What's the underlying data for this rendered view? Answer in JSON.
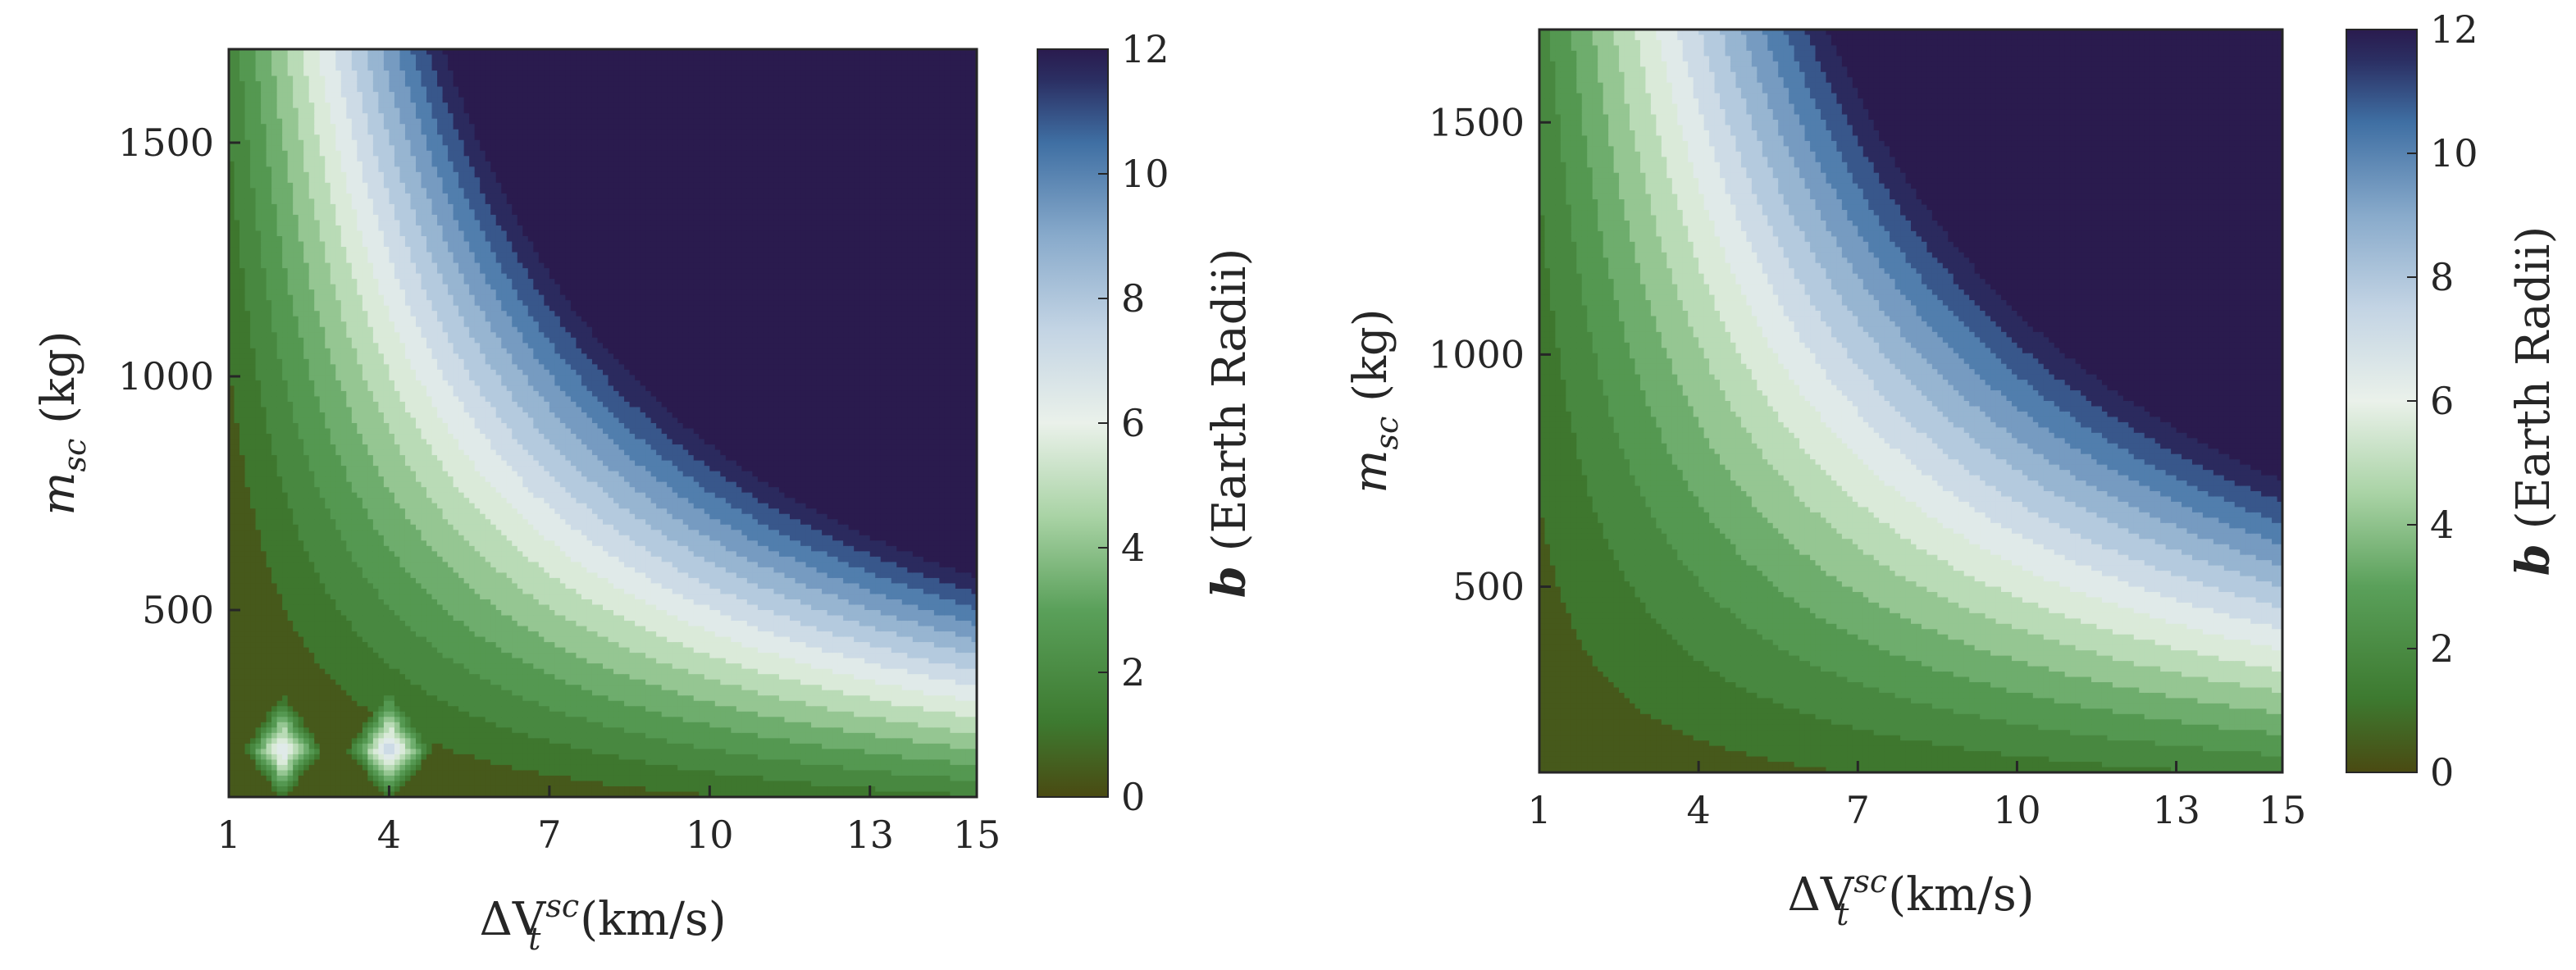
{
  "chart_data": [
    {
      "type": "contour",
      "xlabel": {
        "main": "ΔV",
        "sub": "t",
        "sup": "sc",
        "unit": "(km/s)"
      },
      "ylabel": {
        "main": "m",
        "sub": "sc",
        "unit": "(kg)"
      },
      "xlim": [
        1,
        15
      ],
      "ylim": [
        100,
        1700
      ],
      "xticks": [
        1,
        4,
        7,
        10,
        13,
        15
      ],
      "xtick_labels": [
        "1",
        "4",
        "7",
        "10",
        "13",
        "15"
      ],
      "yticks": [
        500,
        1000,
        1500
      ],
      "ytick_labels": [
        "500",
        "1000",
        "1500"
      ],
      "colorbar": {
        "label_var": "b",
        "label_rest": "(Earth Radii)",
        "range": [
          0,
          12
        ],
        "ticks": [
          0,
          2,
          4,
          6,
          8,
          10,
          12
        ],
        "tick_labels": [
          "0",
          "2",
          "4",
          "6",
          "8",
          "10",
          "12"
        ]
      },
      "level_step": 0.75,
      "model": "b ≈ 0.0015·ΔV·m − 0.8",
      "features": [
        {
          "type": "diamond-artifact",
          "x": 2,
          "y": 200
        },
        {
          "type": "diamond-artifact",
          "x": 4,
          "y": 200
        }
      ],
      "grid": false
    },
    {
      "type": "contour",
      "xlabel": {
        "main": "ΔV",
        "sub": "t",
        "sup": "sc",
        "unit": "(km/s)"
      },
      "ylabel": {
        "main": "m",
        "sub": "sc",
        "unit": "(kg)"
      },
      "xlim": [
        1,
        15
      ],
      "ylim": [
        100,
        1700
      ],
      "xticks": [
        1,
        4,
        7,
        10,
        13,
        15
      ],
      "xtick_labels": [
        "1",
        "4",
        "7",
        "10",
        "13",
        "15"
      ],
      "yticks": [
        500,
        1000,
        1500
      ],
      "ytick_labels": [
        "500",
        "1000",
        "1500"
      ],
      "colorbar": {
        "label_var": "b",
        "label_rest": "(Earth Radii)",
        "range": [
          0,
          12
        ],
        "ticks": [
          0,
          2,
          4,
          6,
          8,
          10,
          12
        ],
        "tick_labels": [
          "0",
          "2",
          "4",
          "6",
          "8",
          "10",
          "12"
        ]
      },
      "level_step": 0.75,
      "model": "b ≈ 0.0011·ΔV·m",
      "features": [],
      "grid": false
    }
  ],
  "colormap": [
    "#4a4a12",
    "#3d7a30",
    "#5aa05a",
    "#a9d3a5",
    "#eaf1ea",
    "#c3d4e4",
    "#88aacb",
    "#3f6fa3",
    "#2b2f63",
    "#2a1b4e"
  ],
  "colormap_stops": [
    0,
    1.2,
    3,
    4.5,
    6,
    7.5,
    9,
    10.5,
    11.5,
    12
  ]
}
